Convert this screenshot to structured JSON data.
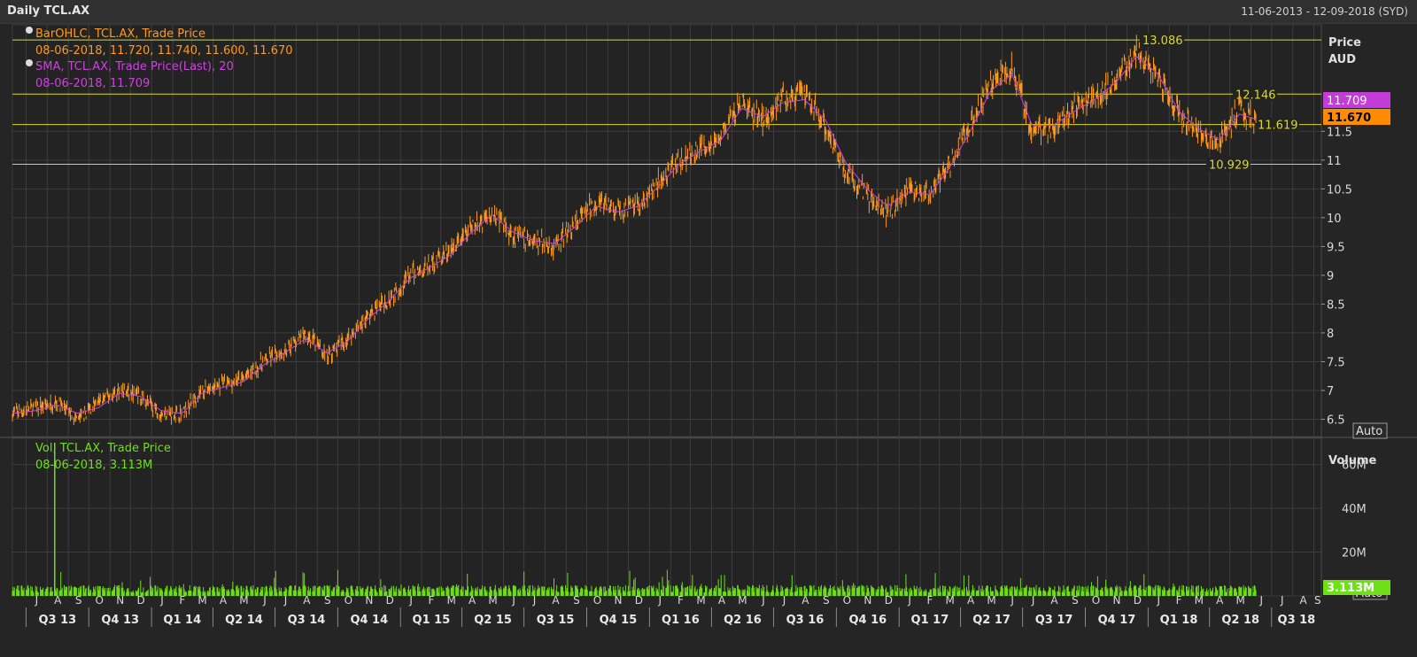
{
  "header": {
    "title": "Daily TCL.AX",
    "date_range": "11-06-2013 - 12-09-2018 (SYD)"
  },
  "colors": {
    "price": "#ff9a1a",
    "sma": "#d040e0",
    "volume": "#6ee016",
    "hline": "#d9d92a",
    "grid": "#3d3d3d"
  },
  "price_panel": {
    "legend": [
      {
        "label": "BarOHLC, TCL.AX, Trade Price",
        "value": "08-06-2018, 11.720, 11.740, 11.600, 11.670",
        "color": "#ff9a1a"
      },
      {
        "label": "SMA, TCL.AX, Trade Price(Last),  20",
        "value": "08-06-2018, 11.709",
        "color": "#d040e0"
      }
    ],
    "axis_title": "Price",
    "axis_unit": "AUD",
    "auto_label": "Auto",
    "last_sma_label": "11.709",
    "last_price_label": "11.670",
    "yticks": [
      6.5,
      7,
      7.5,
      8,
      8.5,
      9,
      9.5,
      10,
      10.5,
      11,
      11.5
    ],
    "ytick_labels": [
      "6.5",
      "7",
      "7.5",
      "8",
      "8.5",
      "9",
      "9.5",
      "10",
      "10.5",
      "11",
      "11.5"
    ],
    "hlines": [
      {
        "value": 13.086,
        "label": "13.086"
      },
      {
        "value": 12.146,
        "label": "12.146"
      },
      {
        "value": 11.619,
        "label": "11.619"
      },
      {
        "value": 10.929,
        "label": "10.929"
      }
    ]
  },
  "volume_panel": {
    "legend_label": "Vol, TCL.AX, Trade Price",
    "legend_value": "08-06-2018, 3.113M",
    "axis_title": "Volume",
    "auto_label": "Auto",
    "last_volume_label": "3.113M",
    "ytick_labels": [
      "20M",
      "40M",
      "60M"
    ],
    "yticks": [
      20,
      40,
      60
    ]
  },
  "xaxis": {
    "months": [
      "J",
      "A",
      "S",
      "O",
      "N",
      "D",
      "J",
      "F",
      "M",
      "A",
      "M",
      "J",
      "J",
      "A",
      "S",
      "O",
      "N",
      "D",
      "J",
      "F",
      "M",
      "A",
      "M",
      "J",
      "J",
      "A",
      "S",
      "O",
      "N",
      "D",
      "J",
      "F",
      "M",
      "A",
      "M",
      "J",
      "J",
      "A",
      "S",
      "O",
      "N",
      "D",
      "J",
      "F",
      "M",
      "A",
      "M",
      "J",
      "J",
      "A",
      "S",
      "O",
      "N",
      "D",
      "J",
      "F",
      "M",
      "A",
      "M",
      "J",
      "J",
      "A",
      "S"
    ],
    "quarters": [
      "Q3 13",
      "Q4 13",
      "Q1 14",
      "Q2 14",
      "Q3 14",
      "Q4 14",
      "Q1 15",
      "Q2 15",
      "Q3 15",
      "Q4 15",
      "Q1 16",
      "Q2 16",
      "Q3 16",
      "Q4 16",
      "Q1 17",
      "Q2 17",
      "Q3 17",
      "Q4 17",
      "Q1 18",
      "Q2 18",
      "Q3 18"
    ]
  },
  "chart_data": {
    "type": "line",
    "title": "Daily TCL.AX",
    "x": [
      "2013-06-11",
      "2013-07-15",
      "2013-08-15",
      "2013-09-15",
      "2013-10-15",
      "2013-11-15",
      "2013-12-15",
      "2014-01-15",
      "2014-02-15",
      "2014-03-15",
      "2014-04-15",
      "2014-05-15",
      "2014-06-15",
      "2014-07-15",
      "2014-08-15",
      "2014-09-15",
      "2014-10-15",
      "2014-11-15",
      "2014-12-15",
      "2015-01-15",
      "2015-02-15",
      "2015-03-15",
      "2015-04-15",
      "2015-05-15",
      "2015-06-15",
      "2015-07-15",
      "2015-08-15",
      "2015-09-15",
      "2015-10-15",
      "2015-11-15",
      "2015-12-15",
      "2016-01-15",
      "2016-02-15",
      "2016-03-15",
      "2016-04-15",
      "2016-05-15",
      "2016-06-15",
      "2016-07-15",
      "2016-08-15",
      "2016-09-15",
      "2016-10-15",
      "2016-11-15",
      "2016-12-15",
      "2017-01-15",
      "2017-02-15",
      "2017-03-15",
      "2017-04-15",
      "2017-05-15",
      "2017-06-15",
      "2017-07-15",
      "2017-08-15",
      "2017-09-15",
      "2017-10-15",
      "2017-11-15",
      "2017-12-15",
      "2018-01-15",
      "2018-02-15",
      "2018-03-15",
      "2018-04-15",
      "2018-05-15",
      "2018-06-08"
    ],
    "series": [
      {
        "name": "BarOHLC, TCL.AX, Trade Price",
        "values": [
          6.6,
          6.7,
          6.8,
          6.5,
          6.8,
          7.0,
          6.9,
          6.6,
          6.6,
          7.0,
          7.1,
          7.2,
          7.5,
          7.7,
          8.0,
          7.6,
          7.9,
          8.3,
          8.6,
          9.0,
          9.2,
          9.4,
          9.8,
          10.1,
          9.7,
          9.6,
          9.5,
          9.9,
          10.3,
          10.1,
          10.2,
          10.6,
          11.0,
          11.2,
          11.4,
          12.0,
          11.7,
          12.1,
          12.1,
          11.6,
          10.8,
          10.4,
          10.1,
          10.5,
          10.4,
          10.9,
          11.6,
          12.3,
          12.6,
          11.5,
          11.6,
          11.9,
          12.1,
          12.4,
          12.9,
          12.5,
          11.8,
          11.5,
          11.3,
          11.9,
          11.67
        ]
      },
      {
        "name": "SMA, TCL.AX, Trade Price(Last),  20",
        "values": [
          6.6,
          6.65,
          6.75,
          6.6,
          6.7,
          6.95,
          6.9,
          6.65,
          6.6,
          6.95,
          7.05,
          7.15,
          7.45,
          7.65,
          7.9,
          7.65,
          7.85,
          8.25,
          8.55,
          8.95,
          9.15,
          9.35,
          9.75,
          10.05,
          9.75,
          9.6,
          9.55,
          9.85,
          10.2,
          10.1,
          10.2,
          10.55,
          10.95,
          11.15,
          11.35,
          11.9,
          11.75,
          12.0,
          12.05,
          11.7,
          10.95,
          10.5,
          10.2,
          10.45,
          10.4,
          10.85,
          11.5,
          12.2,
          12.5,
          11.6,
          11.6,
          11.85,
          12.05,
          12.35,
          12.8,
          12.5,
          11.85,
          11.55,
          11.35,
          11.8,
          11.709
        ]
      }
    ],
    "volume": {
      "name": "Vol, TCL.AX, Trade Price",
      "unit": "M",
      "last": 3.113,
      "spikes": [
        {
          "date": "2013-08-12",
          "value": 70
        }
      ]
    },
    "ylim": [
      6.2,
      13.35
    ],
    "volume_ylim": [
      0,
      72
    ],
    "ylabel": "Price",
    "legend": "top-left",
    "grid": true
  }
}
